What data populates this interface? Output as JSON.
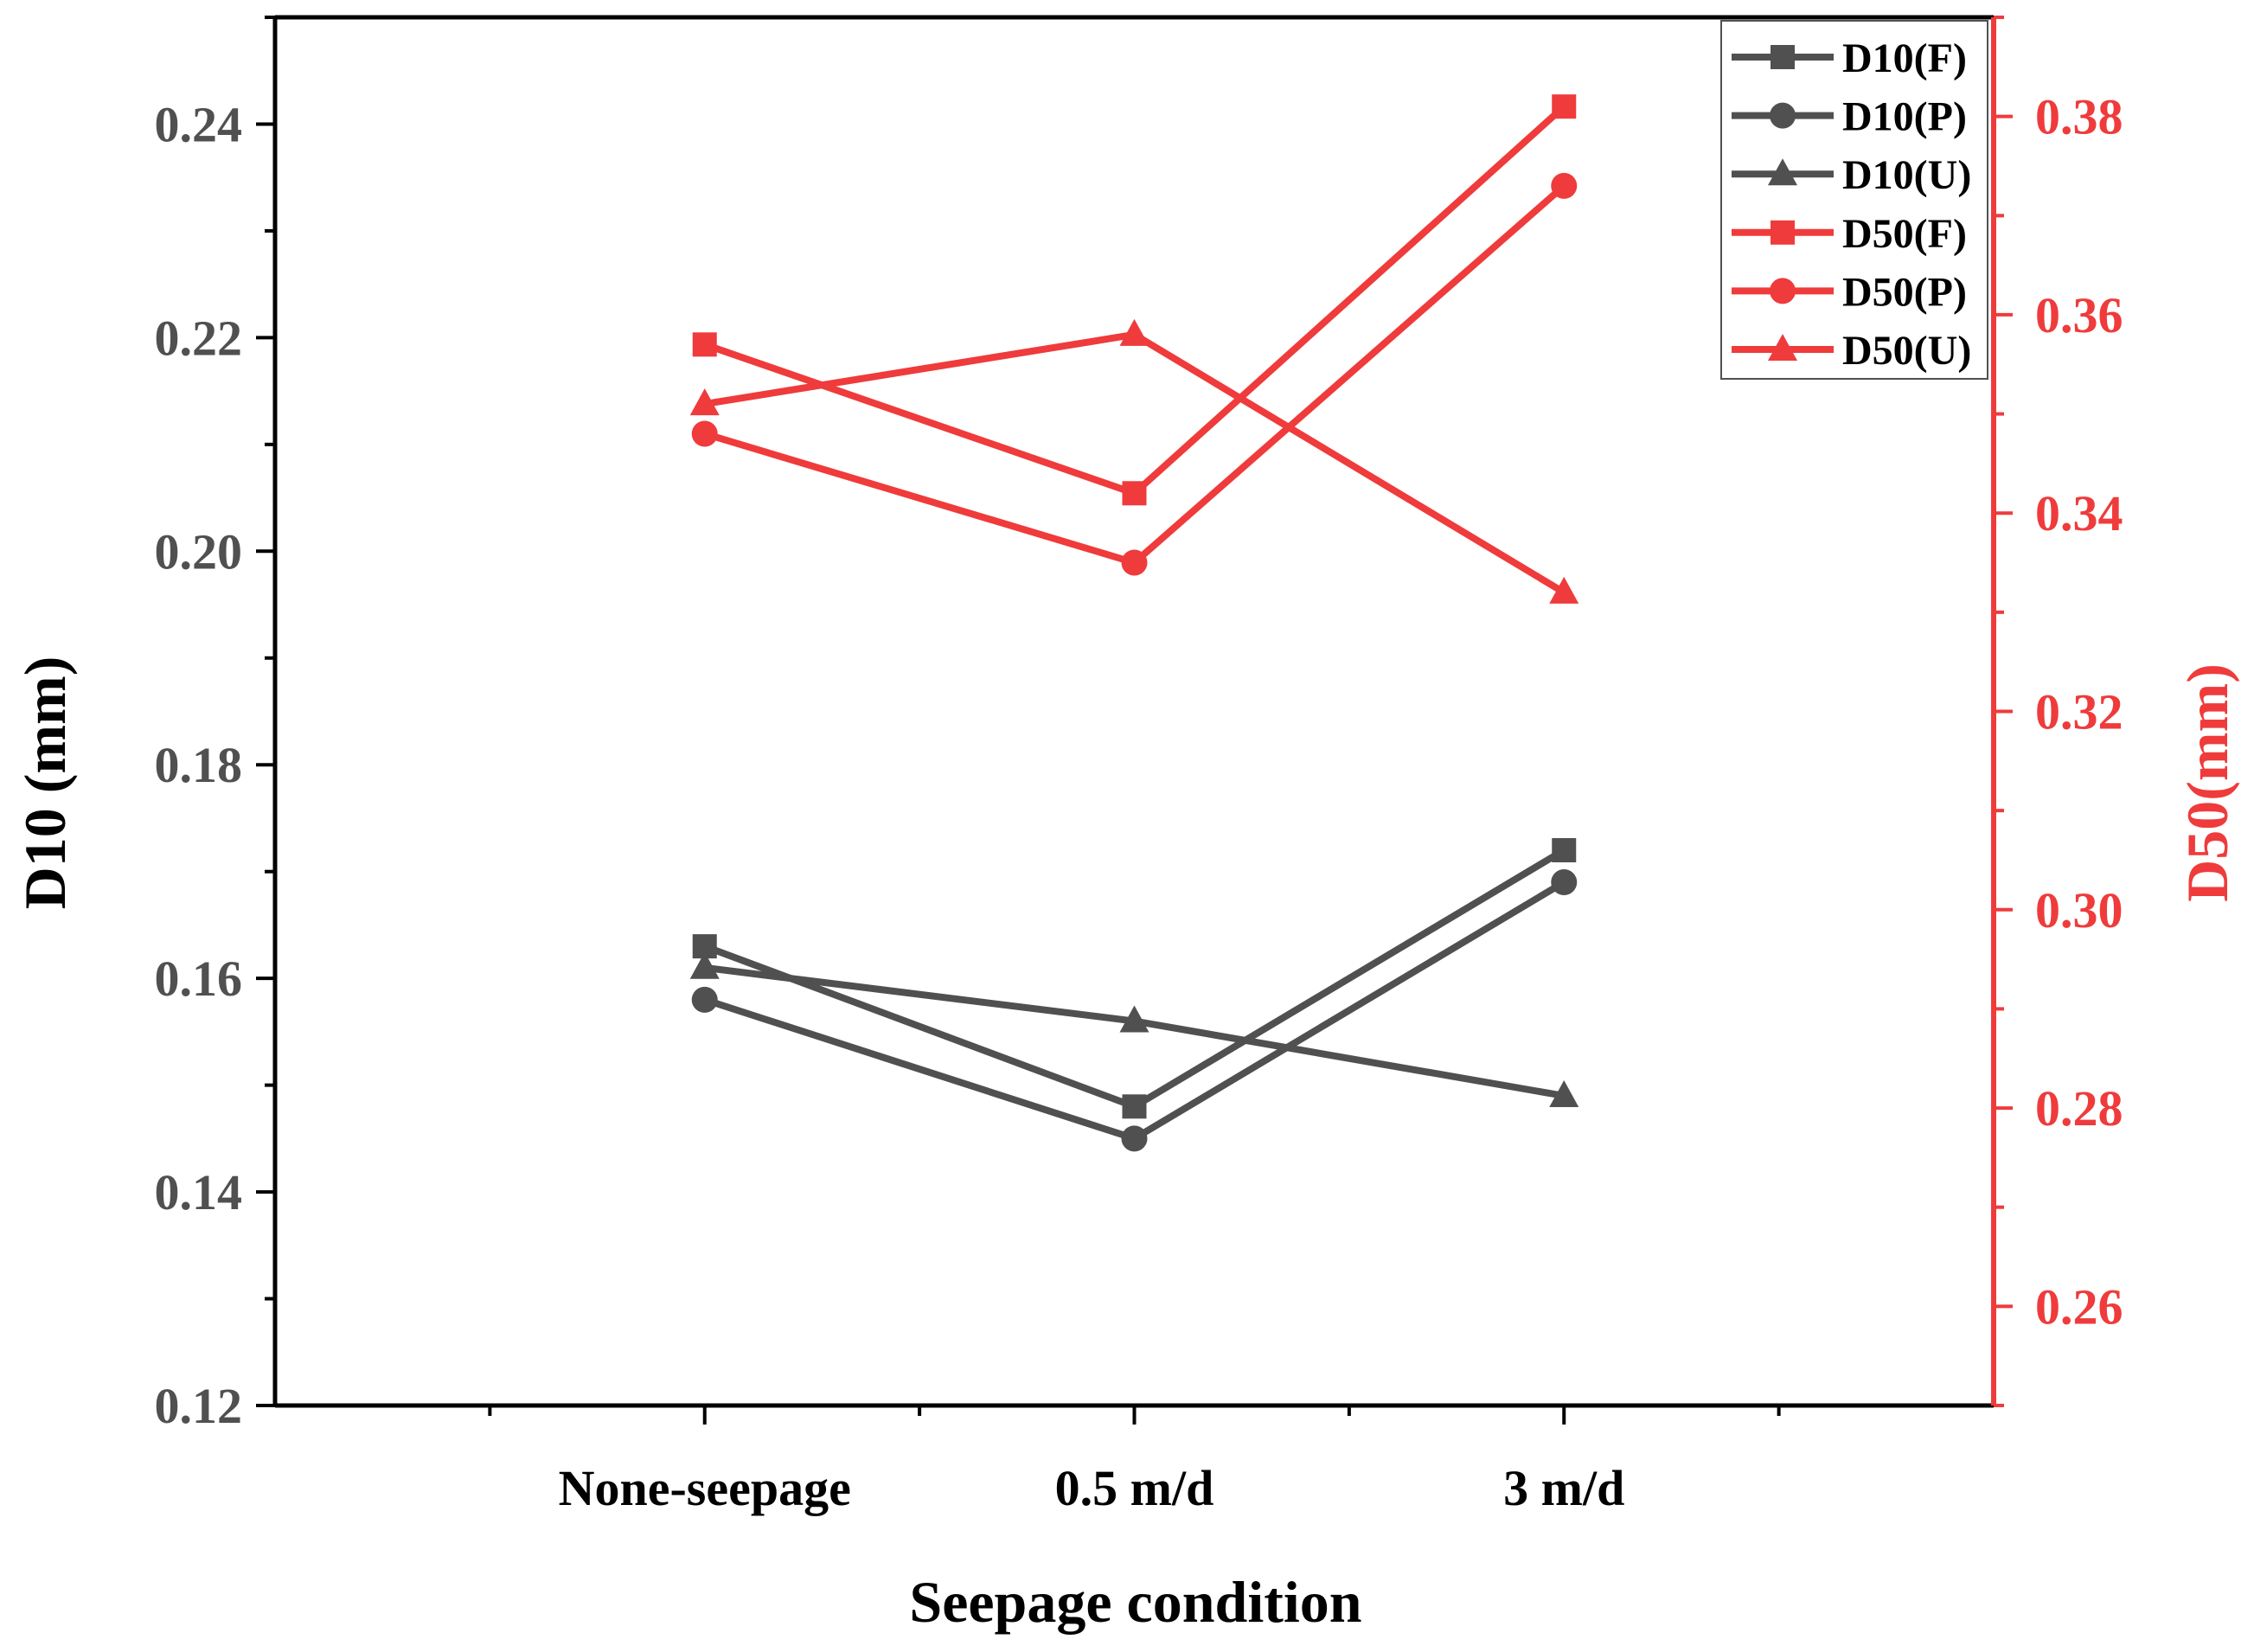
{
  "chart_data": {
    "type": "line",
    "title": "",
    "xlabel": "Seepage condition",
    "ylabel_left": "D10 (mm)",
    "ylabel_right": "D50(mm)",
    "categories": [
      "None-seepage",
      "0.5 m/d",
      "3 m/d"
    ],
    "ylim_left": [
      0.12,
      0.25
    ],
    "ylim_right": [
      0.25,
      0.39
    ],
    "yticks_left": [
      "0.12",
      "0.14",
      "0.16",
      "0.18",
      "0.20",
      "0.22",
      "0.24"
    ],
    "yticks_right": [
      "0.26",
      "0.28",
      "0.30",
      "0.32",
      "0.34",
      "0.36",
      "0.38"
    ],
    "grid": false,
    "legend_position": "top-right",
    "colors": {
      "left_series": "#505050",
      "right_series": "#ef3b3b",
      "axis_left": "#000000",
      "axis_right": "#ef3b3b"
    },
    "series": [
      {
        "name": "D10(F)",
        "axis": "left",
        "marker": "square",
        "values": [
          0.163,
          0.148,
          0.172
        ]
      },
      {
        "name": "D10(P)",
        "axis": "left",
        "marker": "circle",
        "values": [
          0.158,
          0.145,
          0.169
        ]
      },
      {
        "name": "D10(U)",
        "axis": "left",
        "marker": "triangle",
        "values": [
          0.161,
          0.156,
          0.149
        ]
      },
      {
        "name": "D50(F)",
        "axis": "right",
        "marker": "square",
        "values": [
          0.357,
          0.342,
          0.381
        ]
      },
      {
        "name": "D50(P)",
        "axis": "right",
        "marker": "circle",
        "values": [
          0.348,
          0.335,
          0.373
        ]
      },
      {
        "name": "D50(U)",
        "axis": "right",
        "marker": "triangle",
        "values": [
          0.351,
          0.358,
          0.332
        ]
      }
    ]
  }
}
